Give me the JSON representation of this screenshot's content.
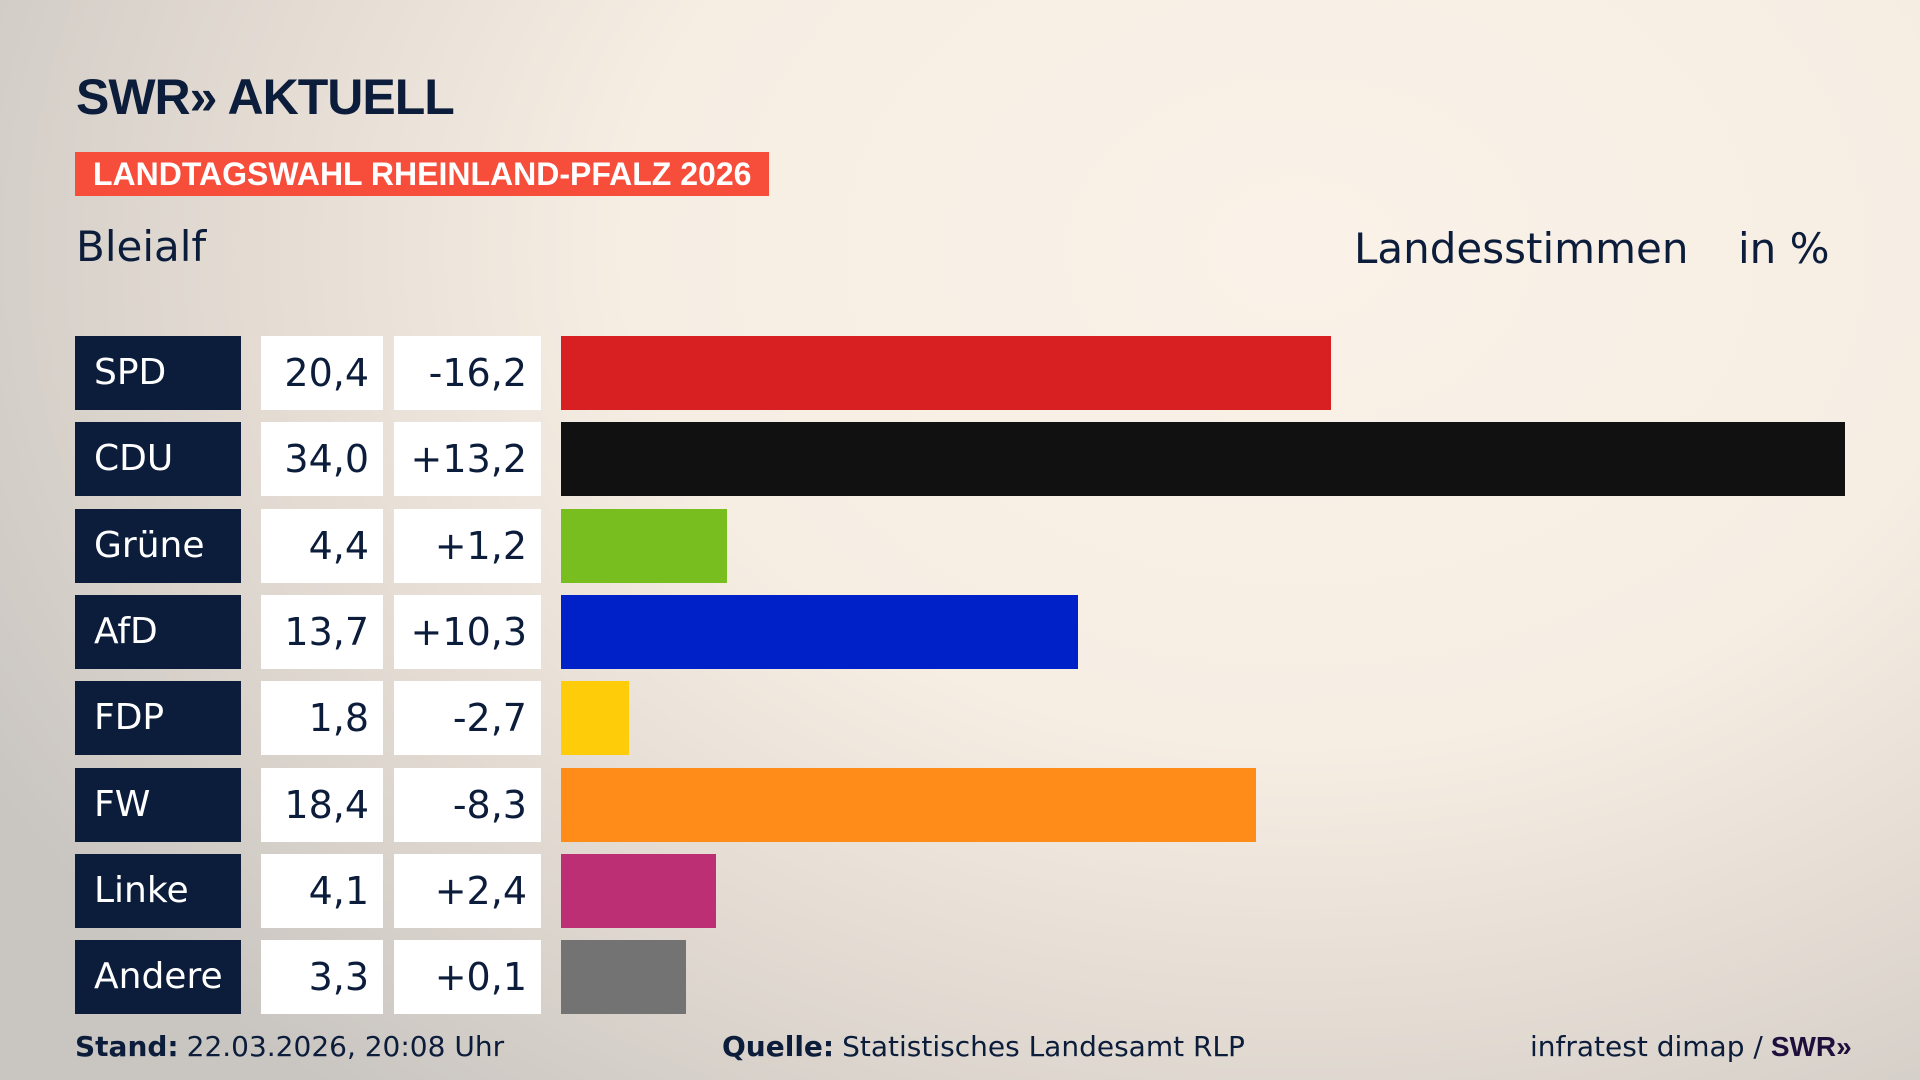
{
  "header": {
    "logo_text": "SWR» AKTUELL",
    "banner": "LANDTAGSWAHL RHEINLAND-PFALZ 2026",
    "region": "Bleialf",
    "measure": "Landesstimmen",
    "unit": "in %"
  },
  "chart_data": {
    "type": "bar",
    "orientation": "horizontal",
    "categories": [
      "SPD",
      "CDU",
      "Grüne",
      "AfD",
      "FDP",
      "FW",
      "Linke",
      "Andere"
    ],
    "values": [
      20.4,
      34.0,
      4.4,
      13.7,
      1.8,
      18.4,
      4.1,
      3.3
    ],
    "value_labels": [
      "20,4",
      "34,0",
      "4,4",
      "13,7",
      "1,8",
      "18,4",
      "4,1",
      "3,3"
    ],
    "change_labels": [
      "-16,2",
      "+13,2",
      "+1,2",
      "+10,3",
      "-2,7",
      "-8,3",
      "+2,4",
      "+0,1"
    ],
    "changes": [
      -16.2,
      13.2,
      1.2,
      10.3,
      -2.7,
      -8.3,
      2.4,
      0.1
    ],
    "colors": [
      "#d81f22",
      "#111111",
      "#78be1e",
      "#0020c8",
      "#ffcc0a",
      "#ff8c19",
      "#bc2f74",
      "#737373"
    ],
    "xlim": [
      0,
      34.0
    ],
    "grid": false
  },
  "footer": {
    "stand_label": "Stand:",
    "stand_value": " 22.03.2026, 20:08 Uhr",
    "source_label": "Quelle:",
    "source_value": " Statistisches Landesamt RLP",
    "credit": "infratest dimap / ",
    "credit_logo": "SWR»"
  }
}
